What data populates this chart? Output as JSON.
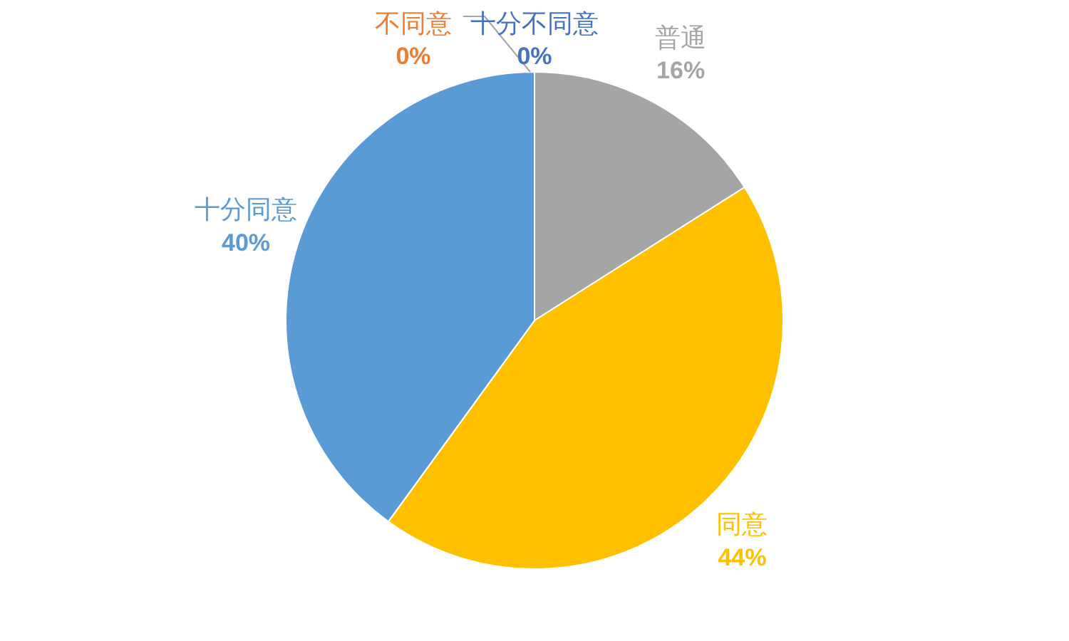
{
  "chart_data": {
    "type": "pie",
    "categories": [
      "十分不同意",
      "不同意",
      "普通",
      "同意",
      "十分同意"
    ],
    "values": [
      0,
      0,
      16,
      44,
      40
    ],
    "colors": [
      "#4472c4",
      "#ed7d31",
      "#a5a5a5",
      "#ffc000",
      "#5b9bd5"
    ],
    "value_labels": [
      "0%",
      "0%",
      "16%",
      "44%",
      "40%"
    ],
    "legend": false
  }
}
